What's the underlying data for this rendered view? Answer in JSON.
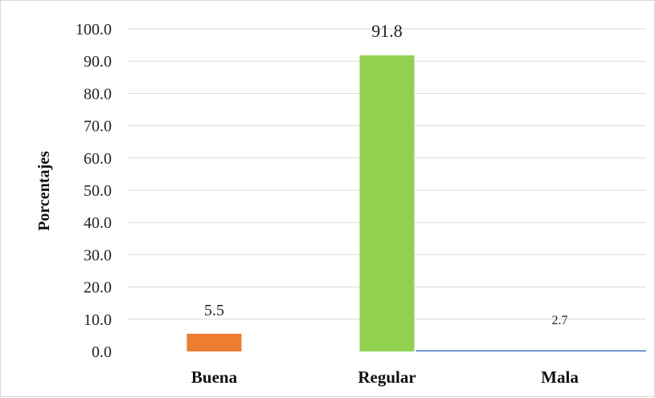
{
  "chart_data": {
    "type": "bar",
    "title": "",
    "xlabel": "",
    "ylabel": "Porcentajes",
    "categories": [
      "Buena",
      "Regular",
      "Mala"
    ],
    "values": [
      5.5,
      91.8,
      2.7
    ],
    "data_labels": [
      "5.5",
      "91.8",
      "2.7"
    ],
    "ylim": [
      0,
      100
    ],
    "yticks": [
      "0.0",
      "10.0",
      "20.0",
      "30.0",
      "40.0",
      "50.0",
      "60.0",
      "70.0",
      "80.0",
      "90.0",
      "100.0"
    ],
    "bar_colors": [
      "#ed7d31",
      "#92d050",
      "#4472c4"
    ],
    "grid": true,
    "legend": "none"
  }
}
